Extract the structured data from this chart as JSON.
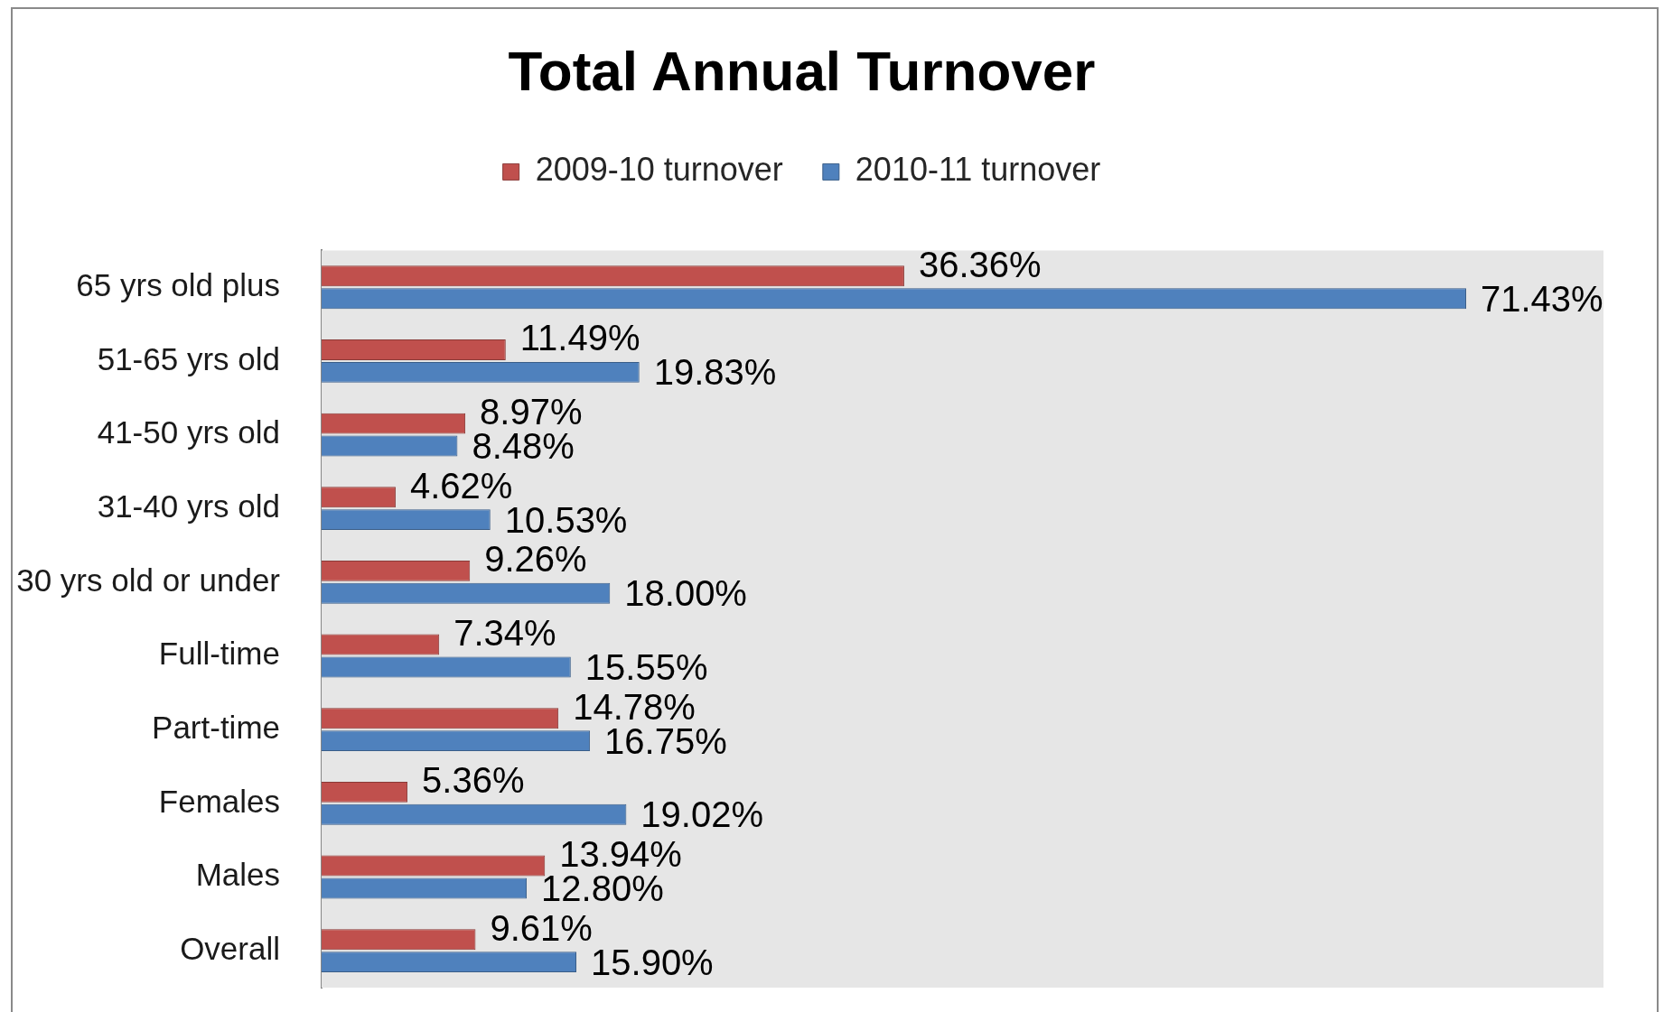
{
  "chart_data": {
    "type": "bar",
    "title": "Total Annual Turnover",
    "orientation": "horizontal",
    "legend": "top",
    "tick_labels": "y",
    "xlim": [
      0,
      80
    ],
    "categories": [
      "65 yrs old plus",
      "51-65 yrs old",
      "41-50 yrs old",
      "31-40 yrs old",
      "30 yrs old or under",
      "Full-time",
      "Part-time",
      "Females",
      "Males",
      "Overall"
    ],
    "series": [
      {
        "name": "2009-10 turnover",
        "color": "#c0504d",
        "values": [
          36.36,
          11.49,
          8.97,
          4.62,
          9.26,
          7.34,
          14.78,
          5.36,
          13.94,
          9.61
        ],
        "value_labels": [
          "36.36%",
          "11.49%",
          "8.97%",
          "4.62%",
          "9.26%",
          "7.34%",
          "14.78%",
          "5.36%",
          "13.94%",
          "9.61%"
        ]
      },
      {
        "name": "2010-11 turnover",
        "color": "#4f81bd",
        "values": [
          71.43,
          19.83,
          8.48,
          10.53,
          18.0,
          15.55,
          16.75,
          19.02,
          12.8,
          15.9
        ],
        "value_labels": [
          "71.43%",
          "19.83%",
          "8.48%",
          "10.53%",
          "18.00%",
          "15.55%",
          "16.75%",
          "19.02%",
          "12.80%",
          "15.90%"
        ]
      }
    ]
  }
}
